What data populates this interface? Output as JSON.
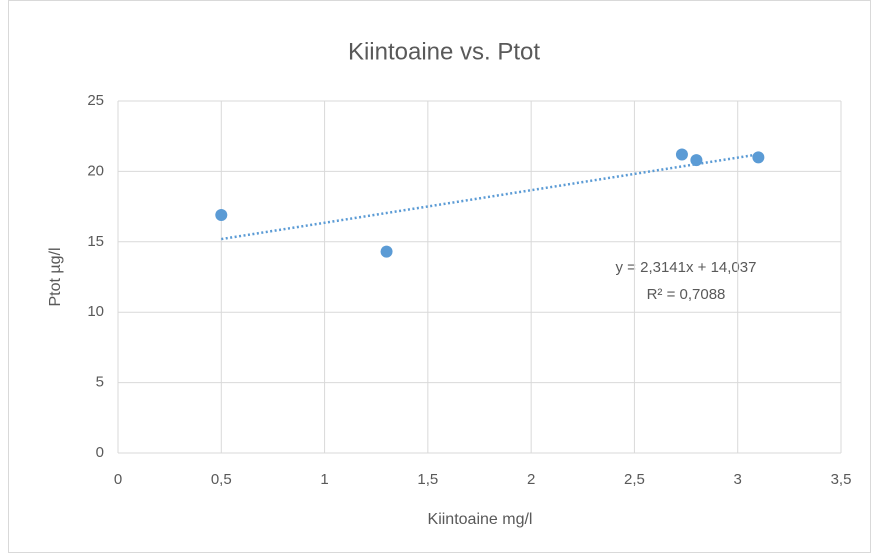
{
  "chart_data": {
    "type": "scatter",
    "title": "Kiintoaine vs. Ptot",
    "x_label": "Kiintoaine mg/l",
    "y_label": "Ptot µg/l",
    "series": [
      {
        "color": "#5b9bd5",
        "x": [
          0.5,
          1.3,
          2.73,
          2.8,
          3.1
        ],
        "values": [
          16.9,
          14.3,
          21.2,
          20.8,
          21.0
        ]
      }
    ],
    "trendline": {
      "slope": 2.3141,
      "intercept": 14.037,
      "equation": "y = 2,3141x + 14,037",
      "r2": "R² = 0,7088",
      "color": "#5b9bd5"
    },
    "xlim": [
      0,
      3.5
    ],
    "xticks": [
      0,
      {
        "value": 0.5,
        "label": "0,5"
      },
      1,
      {
        "value": 1.5,
        "label": "1,5"
      },
      2,
      {
        "value": 2.5,
        "label": "2,5"
      },
      3,
      {
        "value": 3.5,
        "label": "3,5"
      }
    ],
    "ylim": [
      0,
      25
    ],
    "yticks": [
      0,
      5,
      10,
      15,
      20,
      25
    ],
    "grid": true
  }
}
